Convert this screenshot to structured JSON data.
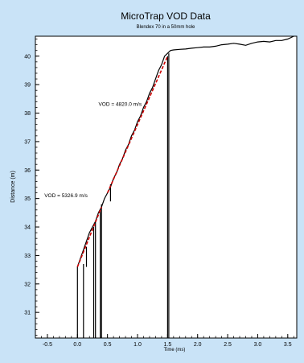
{
  "colors": {
    "background": "#c9e3f7",
    "plot_background": "#ffffff",
    "trace": "#000000",
    "fit": "#cc0000"
  },
  "chart_data": {
    "type": "line",
    "title": "MicroTrap VOD Data",
    "subtitle": "Blendex 70 in a 50mm hole",
    "xlabel": "Time (ms)",
    "ylabel": "Distance (m)",
    "xlim": [
      -0.7,
      3.65
    ],
    "ylim": [
      30.1,
      40.7
    ],
    "x_ticks": [
      -0.5,
      0.0,
      0.5,
      1.0,
      1.5,
      2.0,
      2.5,
      3.0,
      3.5
    ],
    "x_tick_labels": [
      "-0.5",
      "0.0",
      "0.5",
      "1.0",
      "1.5",
      "2.0",
      "2.5",
      "3.0",
      "3.5"
    ],
    "y_ticks": [
      31,
      32,
      33,
      34,
      35,
      36,
      37,
      38,
      39,
      40
    ],
    "y_tick_labels": [
      "31",
      "32",
      "33",
      "34",
      "35",
      "36",
      "37",
      "38",
      "39",
      "40"
    ],
    "grid": false,
    "legend": "none",
    "series": [
      {
        "role": "trace",
        "x": [
          0.0,
          0.0,
          0.05,
          0.1,
          0.15,
          0.2,
          0.25,
          0.3,
          0.35,
          0.4,
          0.45,
          0.5,
          0.55,
          0.6,
          0.65,
          0.7,
          0.75,
          0.8,
          0.85,
          0.9,
          0.95,
          1.0,
          1.05,
          1.1,
          1.15,
          1.2,
          1.25,
          1.3,
          1.35,
          1.4,
          1.45,
          1.5,
          1.55,
          1.6,
          1.7,
          1.8,
          1.9,
          2.0,
          2.1,
          2.2,
          2.3,
          2.4,
          2.5,
          2.6,
          2.7,
          2.8,
          2.9,
          3.0,
          3.1,
          3.2,
          3.3,
          3.4,
          3.5,
          3.6
        ],
        "y": [
          30.1,
          32.6,
          32.9,
          33.2,
          33.5,
          33.8,
          34.0,
          34.2,
          34.5,
          34.7,
          35.0,
          35.2,
          35.4,
          35.7,
          35.9,
          36.2,
          36.4,
          36.7,
          36.9,
          37.2,
          37.4,
          37.7,
          37.9,
          38.2,
          38.4,
          38.7,
          38.9,
          39.2,
          39.5,
          39.7,
          40.0,
          40.1,
          40.2,
          40.22,
          40.24,
          40.25,
          40.28,
          40.3,
          40.32,
          40.32,
          40.35,
          40.4,
          40.42,
          40.45,
          40.42,
          40.38,
          40.45,
          40.5,
          40.52,
          40.5,
          40.55,
          40.55,
          40.6,
          40.7
        ]
      },
      {
        "role": "trace",
        "x": [
          0.1,
          0.1
        ],
        "y": [
          30.1,
          32.7
        ]
      },
      {
        "role": "trace",
        "x": [
          0.27,
          0.27
        ],
        "y": [
          30.1,
          34.0
        ]
      },
      {
        "role": "trace",
        "x": [
          0.3,
          0.3
        ],
        "y": [
          30.1,
          34.2
        ]
      },
      {
        "role": "trace",
        "x": [
          0.38,
          0.38
        ],
        "y": [
          30.1,
          34.6
        ]
      },
      {
        "role": "trace",
        "x": [
          0.4,
          0.4
        ],
        "y": [
          30.1,
          34.8
        ]
      },
      {
        "role": "trace",
        "x": [
          1.5,
          1.5
        ],
        "y": [
          30.1,
          40.0
        ]
      },
      {
        "role": "trace",
        "x": [
          1.52,
          1.52
        ],
        "y": [
          30.1,
          40.1
        ]
      },
      {
        "role": "trace",
        "x": [
          0.15,
          0.15
        ],
        "y": [
          32.6,
          33.3
        ]
      },
      {
        "role": "trace",
        "x": [
          0.55,
          0.55
        ],
        "y": [
          34.9,
          35.5
        ]
      },
      {
        "role": "fit",
        "x": [
          0.0,
          0.4
        ],
        "y": [
          32.6,
          34.7
        ]
      },
      {
        "role": "fit",
        "x": [
          0.5,
          1.5
        ],
        "y": [
          35.2,
          40.0
        ]
      }
    ],
    "annotations": [
      {
        "text": "VOD = 4820.0 m/s",
        "x": 0.35,
        "y": 38.25
      },
      {
        "text": "VOD = 5326.9 m/s",
        "x": -0.55,
        "y": 35.05
      }
    ]
  }
}
